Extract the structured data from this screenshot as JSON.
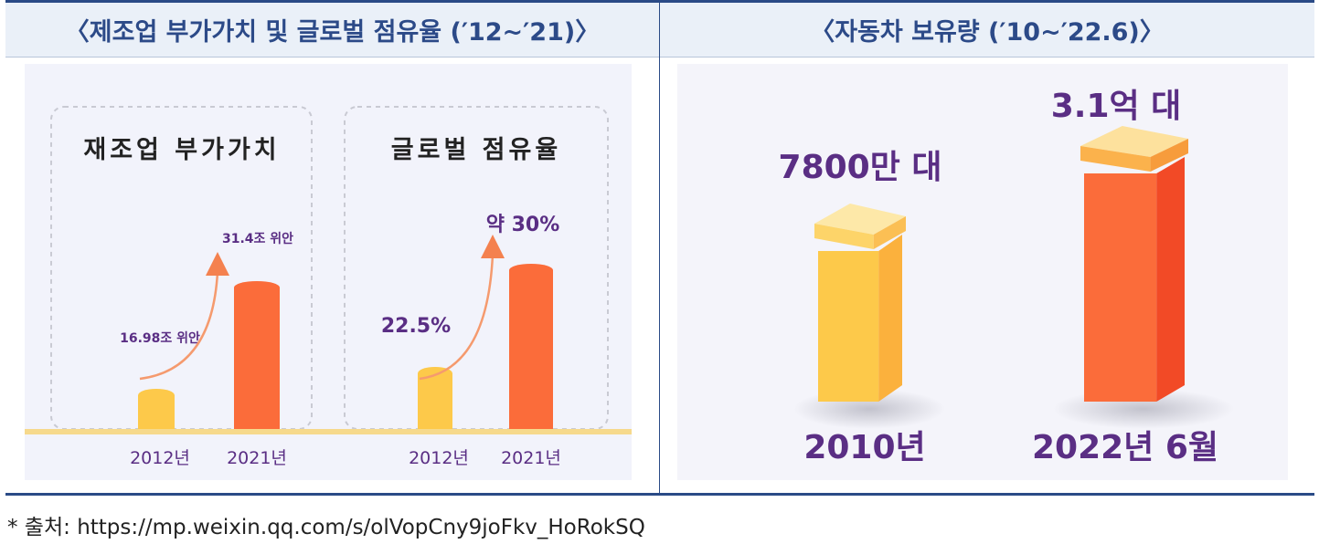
{
  "headers": {
    "left": "〈제조업 부가가치 및 글로벌 점유율 (′12~′21)〉",
    "right": "〈자동차 보유량 (′10~′22.6)〉"
  },
  "source": "* 출처: https://mp.weixin.qq.com/s/olVopCny9joFkv_HoRokSQ",
  "colors": {
    "accent": "#2c4a88",
    "bar_yellow": "#fdc94a",
    "bar_orange": "#fb6c3a",
    "label_purple": "#5a2e84"
  },
  "chart_data": [
    {
      "type": "bar",
      "title": "재조업 부가가치",
      "categories": [
        "2012년",
        "2021년"
      ],
      "values": [
        16.98,
        31.4
      ],
      "units": "조 위안",
      "data_labels": [
        "16.98조 위안",
        "31.4조 위안"
      ],
      "ylim": [
        0,
        35
      ]
    },
    {
      "type": "bar",
      "title": "글로벌 점유율",
      "categories": [
        "2012년",
        "2021년"
      ],
      "values": [
        22.5,
        30
      ],
      "units": "%",
      "data_labels": [
        "22.5%",
        "약 30%"
      ],
      "ylim": [
        0,
        33
      ]
    },
    {
      "type": "bar",
      "title": "",
      "categories": [
        "2010년",
        "2022년 6월"
      ],
      "values": [
        0.78,
        3.1
      ],
      "units": "억 대",
      "data_labels": [
        "7800만 대",
        "3.1억 대"
      ],
      "ylim": [
        0,
        3.5
      ]
    }
  ]
}
